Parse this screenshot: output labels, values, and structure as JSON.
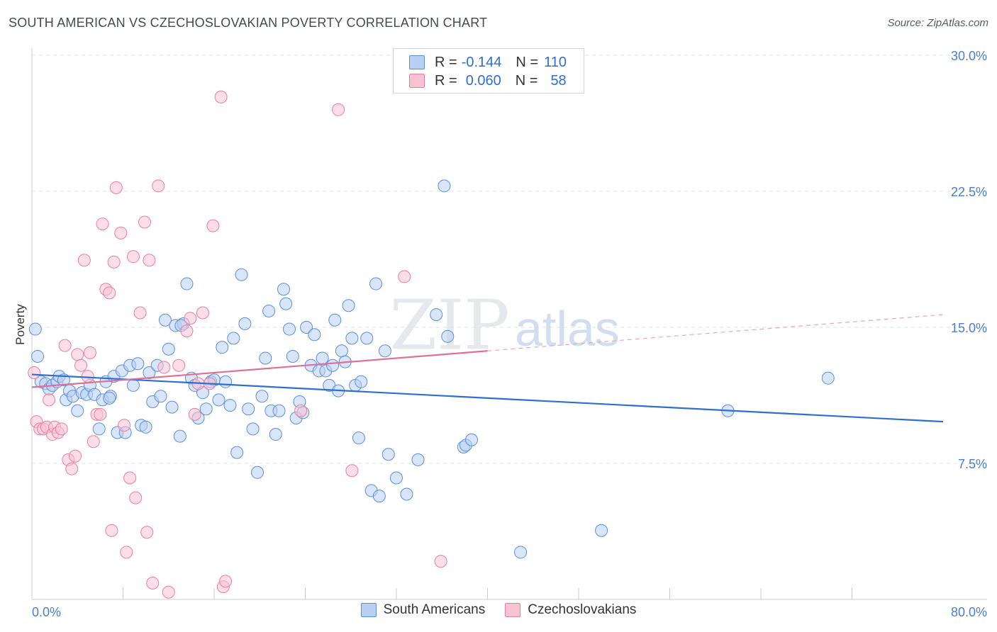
{
  "header": {
    "title": "SOUTH AMERICAN VS CZECHOSLOVAKIAN POVERTY CORRELATION CHART",
    "source": "Source: ZipAtlas.com"
  },
  "watermark": {
    "zip": "ZIP",
    "atlas": "atlas"
  },
  "legend": {
    "rows": [
      {
        "r_label": "R =",
        "r_value": "-0.144",
        "n_label": "N =",
        "n_value": "110",
        "color": "#5b8fde",
        "fill": "#b9d0f2"
      },
      {
        "r_label": "R =",
        "r_value": "0.060",
        "n_label": "N =",
        "n_value": "58",
        "color": "#e87fa0",
        "fill": "#f7c3d3"
      }
    ]
  },
  "bottom_legend": {
    "items": [
      {
        "label": "South Americans",
        "color": "#5b8fde",
        "fill": "#b9d0f2"
      },
      {
        "label": "Czechoslovakians",
        "color": "#e87fa0",
        "fill": "#f7c3d3"
      }
    ]
  },
  "chart_data": {
    "type": "scatter",
    "title": "SOUTH AMERICAN VS CZECHOSLOVAKIAN POVERTY CORRELATION CHART",
    "xlabel": "",
    "ylabel": "Poverty",
    "xlim": [
      0,
      80
    ],
    "ylim": [
      0,
      30
    ],
    "y_ticks": [
      {
        "value": 7.5,
        "label": "7.5%"
      },
      {
        "value": 15,
        "label": "15.0%"
      },
      {
        "value": 22.5,
        "label": "22.5%"
      },
      {
        "value": 30,
        "label": "30.0%"
      }
    ],
    "x_tick_labels": [
      {
        "value": 0,
        "label": "0.0%"
      },
      {
        "value": 80,
        "label": "80.0%"
      }
    ],
    "x_minor_ticks": [
      8,
      16,
      24,
      32,
      40,
      48,
      56,
      64,
      72
    ],
    "series": [
      {
        "name": "South Americans",
        "color": "#5b8fde",
        "fill": "#b9d0f2",
        "trend": {
          "x0": 0,
          "y0": 12.4,
          "x1": 80,
          "y1": 9.8,
          "dashed_from": null
        },
        "points": [
          [
            0.3,
            14.9
          ],
          [
            0.5,
            13.4
          ],
          [
            0.8,
            12
          ],
          [
            1.2,
            11.9
          ],
          [
            1.5,
            11.6
          ],
          [
            1.8,
            11.8
          ],
          [
            2.2,
            12
          ],
          [
            2.4,
            12.3
          ],
          [
            2.8,
            12.1
          ],
          [
            3,
            11
          ],
          [
            3.3,
            11.5
          ],
          [
            3.6,
            11.2
          ],
          [
            4,
            10.4
          ],
          [
            4.4,
            11.4
          ],
          [
            4.8,
            11.3
          ],
          [
            5.1,
            11.8
          ],
          [
            5.5,
            11.3
          ],
          [
            5.9,
            9.4
          ],
          [
            6.2,
            11
          ],
          [
            6.5,
            12
          ],
          [
            6.9,
            11.2
          ],
          [
            7.2,
            12.3
          ],
          [
            7.5,
            9.2
          ],
          [
            7.9,
            12.6
          ],
          [
            8.2,
            9.2
          ],
          [
            8.6,
            12.9
          ],
          [
            8.9,
            11.8
          ],
          [
            9.3,
            13
          ],
          [
            9.6,
            9.6
          ],
          [
            10,
            9.5
          ],
          [
            10.3,
            12.5
          ],
          [
            10.6,
            10.9
          ],
          [
            11,
            12.9
          ],
          [
            11.3,
            11.2
          ],
          [
            11.7,
            15.4
          ],
          [
            12,
            13.8
          ],
          [
            12.3,
            10.6
          ],
          [
            12.6,
            15.1
          ],
          [
            13,
            9
          ],
          [
            13.3,
            15.2
          ],
          [
            13.6,
            17.4
          ],
          [
            14,
            12.2
          ],
          [
            14.3,
            11.8
          ],
          [
            14.6,
            10
          ],
          [
            15,
            11.4
          ],
          [
            15.3,
            10.5
          ],
          [
            15.7,
            12
          ],
          [
            16,
            12.1
          ],
          [
            16.4,
            11
          ],
          [
            16.7,
            13.9
          ],
          [
            17,
            12
          ],
          [
            17.4,
            10.7
          ],
          [
            17.7,
            14.4
          ],
          [
            18,
            8.1
          ],
          [
            18.4,
            17.9
          ],
          [
            18.7,
            15.2
          ],
          [
            19,
            10.5
          ],
          [
            19.4,
            9.4
          ],
          [
            19.8,
            7
          ],
          [
            20.2,
            11.2
          ],
          [
            20.5,
            13.3
          ],
          [
            20.8,
            15.9
          ],
          [
            21,
            10.4
          ],
          [
            21.4,
            9.1
          ],
          [
            21.7,
            10.4
          ],
          [
            22.1,
            17.1
          ],
          [
            22.3,
            16.3
          ],
          [
            22.6,
            14.9
          ],
          [
            22.9,
            13.4
          ],
          [
            23.2,
            10
          ],
          [
            23.5,
            10.9
          ],
          [
            23.8,
            10.3
          ],
          [
            24.1,
            15
          ],
          [
            24.5,
            12.9
          ],
          [
            24.8,
            14.6
          ],
          [
            25.2,
            12.6
          ],
          [
            25.5,
            13.3
          ],
          [
            25.8,
            12.6
          ],
          [
            26.1,
            11.8
          ],
          [
            26.4,
            12.9
          ],
          [
            26.6,
            15.4
          ],
          [
            26.9,
            11.5
          ],
          [
            27.2,
            13.7
          ],
          [
            27.5,
            13.1
          ],
          [
            27.8,
            16.2
          ],
          [
            28.1,
            14.4
          ],
          [
            28.4,
            11.8
          ],
          [
            28.7,
            8.9
          ],
          [
            28.9,
            12
          ],
          [
            29.4,
            14.4
          ],
          [
            29.8,
            6
          ],
          [
            30.2,
            17.4
          ],
          [
            30.5,
            5.7
          ],
          [
            31,
            13.7
          ],
          [
            31.3,
            8
          ],
          [
            32,
            6.7
          ],
          [
            32.9,
            5.8
          ],
          [
            33.9,
            7.7
          ],
          [
            35.5,
            15.7
          ],
          [
            36.5,
            14.5
          ],
          [
            36.2,
            22.8
          ],
          [
            37.9,
            8.4
          ],
          [
            38.1,
            8.5
          ],
          [
            38.6,
            8.8
          ],
          [
            42.9,
            2.6
          ],
          [
            50,
            3.8
          ],
          [
            61.1,
            10.4
          ],
          [
            69.9,
            12.2
          ],
          [
            6.8,
            11.1
          ],
          [
            13.1,
            15.1
          ]
        ]
      },
      {
        "name": "Czechoslovakians",
        "color": "#e87fa0",
        "fill": "#f7c3d3",
        "trend": {
          "x0": 0,
          "y0": 11.7,
          "x1": 80,
          "y1": 15.7,
          "dashed_from": 40
        },
        "points": [
          [
            0.2,
            12.5
          ],
          [
            0.4,
            9.8
          ],
          [
            0.7,
            9.4
          ],
          [
            1,
            9.4
          ],
          [
            1.3,
            9.5
          ],
          [
            1.5,
            11
          ],
          [
            1.8,
            9.1
          ],
          [
            2,
            9.5
          ],
          [
            2.3,
            9.2
          ],
          [
            2.6,
            9.4
          ],
          [
            2.9,
            14
          ],
          [
            3.2,
            7.7
          ],
          [
            3.5,
            7.2
          ],
          [
            3.8,
            7.9
          ],
          [
            4,
            13.5
          ],
          [
            4.3,
            12.9
          ],
          [
            4.6,
            18.7
          ],
          [
            4.9,
            12.3
          ],
          [
            5.1,
            13.6
          ],
          [
            5.4,
            8.7
          ],
          [
            5.7,
            10.2
          ],
          [
            6,
            10.2
          ],
          [
            6.2,
            20.7
          ],
          [
            6.5,
            17.1
          ],
          [
            6.8,
            16.9
          ],
          [
            7,
            3.8
          ],
          [
            7.2,
            18.6
          ],
          [
            7.4,
            22.7
          ],
          [
            7.8,
            20.2
          ],
          [
            8.1,
            9.6
          ],
          [
            8.3,
            2.6
          ],
          [
            8.6,
            6.7
          ],
          [
            8.9,
            18.9
          ],
          [
            9.1,
            5.6
          ],
          [
            9.5,
            15.8
          ],
          [
            9.9,
            20.8
          ],
          [
            10.1,
            3.7
          ],
          [
            10.3,
            18.7
          ],
          [
            10.6,
            0.9
          ],
          [
            11.1,
            22.8
          ],
          [
            11.6,
            12.8
          ],
          [
            12,
            0.4
          ],
          [
            12.9,
            12.9
          ],
          [
            13.6,
            14.8
          ],
          [
            13.9,
            15.5
          ],
          [
            14.3,
            10.2
          ],
          [
            14.6,
            11.9
          ],
          [
            15,
            15.8
          ],
          [
            15.6,
            11.9
          ],
          [
            15.9,
            20.6
          ],
          [
            16.8,
            0.7
          ],
          [
            17,
            1
          ],
          [
            16.6,
            27.7
          ],
          [
            23.6,
            10.4
          ],
          [
            26.9,
            27
          ],
          [
            28.1,
            7.1
          ],
          [
            32.7,
            17.8
          ],
          [
            35.9,
            2.1
          ]
        ]
      }
    ]
  }
}
